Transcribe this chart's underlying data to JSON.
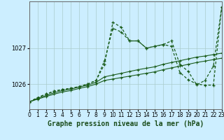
{
  "title": "Graphe pression niveau de la mer (hPa)",
  "bg_color": "#cceeff",
  "grid_color": "#aacccc",
  "line_color": "#1a5c1a",
  "x_min": 0,
  "x_max": 23,
  "y_min": 1025.3,
  "y_max": 1028.3,
  "y_ticks": [
    1026,
    1027
  ],
  "xlabel_fontsize": 5.5,
  "ylabel_fontsize": 6.0,
  "title_fontsize": 7.0,
  "marker": "+",
  "s1": [
    1025.5,
    1025.62,
    1025.72,
    1025.8,
    1025.85,
    1025.88,
    1025.93,
    1026.0,
    1026.1,
    1026.65,
    1027.55,
    1027.45,
    1027.2,
    1027.2,
    1027.0,
    1027.05,
    1027.1,
    1027.2,
    1026.55,
    1026.35,
    1025.98,
    1026.1,
    1026.5,
    1028.15
  ],
  "s2": [
    1025.5,
    1025.62,
    1025.72,
    1025.8,
    1025.85,
    1025.88,
    1025.93,
    1026.0,
    1026.1,
    1026.55,
    1027.72,
    1027.58,
    1027.2,
    1027.2,
    1027.0,
    1027.05,
    1027.1,
    1027.05,
    1026.32,
    1026.12,
    1026.0,
    1025.97,
    1025.97,
    1028.15
  ],
  "s3": [
    1025.5,
    1025.6,
    1025.68,
    1025.76,
    1025.82,
    1025.86,
    1025.92,
    1025.97,
    1026.05,
    1026.2,
    1026.25,
    1026.3,
    1026.35,
    1026.4,
    1026.44,
    1026.48,
    1026.55,
    1026.6,
    1026.65,
    1026.7,
    1026.75,
    1026.78,
    1026.82,
    1026.86
  ],
  "s4": [
    1025.5,
    1025.58,
    1025.65,
    1025.72,
    1025.78,
    1025.82,
    1025.88,
    1025.93,
    1026.0,
    1026.1,
    1026.14,
    1026.18,
    1026.22,
    1026.26,
    1026.3,
    1026.34,
    1026.4,
    1026.45,
    1026.5,
    1026.55,
    1026.6,
    1026.64,
    1026.68,
    1026.72
  ]
}
